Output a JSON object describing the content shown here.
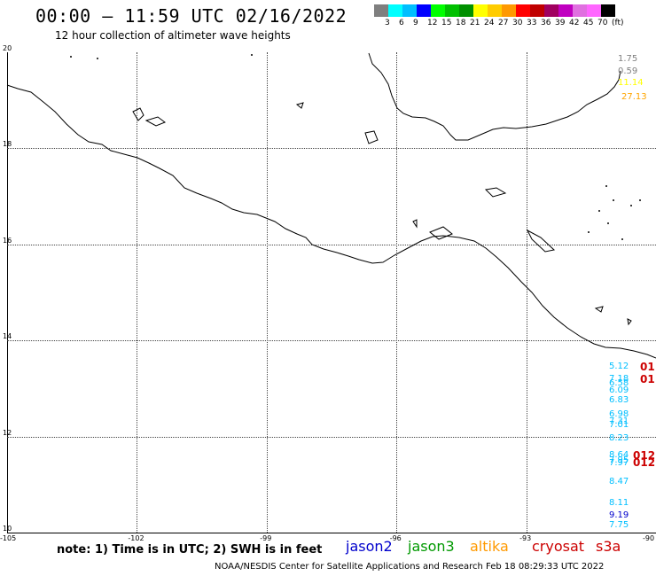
{
  "header": {
    "title": "00:00 – 11:59 UTC 02/16/2022",
    "subtitle": "12 hour collection of altimeter wave heights"
  },
  "color_scale": {
    "labels": [
      "3",
      "6",
      "9",
      "12",
      "15",
      "18",
      "21",
      "24",
      "27",
      "30",
      "33",
      "36",
      "39",
      "42",
      "45",
      "70"
    ],
    "unit": "(ft)",
    "colors": [
      "#7f7f7f",
      "#00ffff",
      "#00bfff",
      "#0000ff",
      "#00ff00",
      "#00c000",
      "#009000",
      "#ffff00",
      "#ffcc00",
      "#ff9900",
      "#ff0000",
      "#c00000",
      "#a00060",
      "#c000c0",
      "#e070e0",
      "#ff66ff",
      "#000000"
    ]
  },
  "map": {
    "lat_labels": [
      "20",
      "18",
      "16",
      "14",
      "12",
      "10"
    ],
    "lon_labels": [
      "-105",
      "-102",
      "-99",
      "-96",
      "-93",
      "-90"
    ],
    "lat_values": [
      20,
      18,
      16,
      14,
      12,
      10
    ],
    "lon_values": [
      -105,
      -102,
      -99,
      -96,
      -93,
      -90
    ]
  },
  "wave_heights": [
    {
      "text": "1.75",
      "color": "#808080",
      "lat": 19.85
    },
    {
      "text": "0.59",
      "color": "#808080",
      "lat": 19.6
    },
    {
      "text": "11.14",
      "color": "#ffff00",
      "lat": 19.35
    },
    {
      "text": "27.13",
      "color": "#ffa500",
      "lat": 19.05
    },
    {
      "text": "5.12",
      "color": "#00bfff",
      "lat": 13.45
    },
    {
      "text": "7.18",
      "color": "#00bfff",
      "lat": 13.2
    },
    {
      "text": "6.58",
      "color": "#00bfff",
      "lat": 13.1
    },
    {
      "text": "6.09",
      "color": "#00bfff",
      "lat": 12.95
    },
    {
      "text": "6.83",
      "color": "#00bfff",
      "lat": 12.75
    },
    {
      "text": "6.98",
      "color": "#00bfff",
      "lat": 12.45
    },
    {
      "text": "7.31",
      "color": "#00bfff",
      "lat": 12.3
    },
    {
      "text": "7.01",
      "color": "#00bfff",
      "lat": 12.23
    },
    {
      "text": "8.23",
      "color": "#00bfff",
      "lat": 11.95
    },
    {
      "text": "8.64",
      "color": "#00bfff",
      "lat": 11.6
    },
    {
      "text": "7.95",
      "color": "#00bfff",
      "lat": 11.5
    },
    {
      "text": "7.97",
      "color": "#00bfff",
      "lat": 11.43
    },
    {
      "text": "8.47",
      "color": "#00bfff",
      "lat": 11.05
    },
    {
      "text": "8.11",
      "color": "#00bfff",
      "lat": 10.6
    },
    {
      "text": "9.19",
      "color": "#0000cc",
      "lat": 10.35
    },
    {
      "text": "7.75",
      "color": "#00bfff",
      "lat": 10.15
    }
  ],
  "edge_labels": [
    {
      "text": "01",
      "color": "#cc0000",
      "lat": 13.45
    },
    {
      "text": "01",
      "color": "#cc0000",
      "lat": 13.2
    },
    {
      "text": "012",
      "color": "#cc0000",
      "lat": 11.6
    },
    {
      "text": "012",
      "color": "#cc0000",
      "lat": 11.45
    }
  ],
  "footer": {
    "note": "note: 1) Time is in UTC; 2) SWH is in feet",
    "legend": [
      {
        "label": "jason2",
        "color": "#0000cc"
      },
      {
        "label": "jason3",
        "color": "#009900"
      },
      {
        "label": "altika",
        "color": "#ff9900"
      },
      {
        "label": "cryosat",
        "color": "#cc0000"
      },
      {
        "label": "s3a",
        "color": "#cc0000"
      }
    ],
    "credit": "NOAA/NESDIS Center for Satellite Applications and Research    Feb 18 08:29:33 UTC 2022"
  }
}
